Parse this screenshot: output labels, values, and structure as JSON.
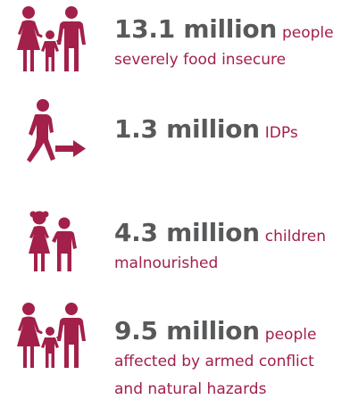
{
  "colors": {
    "accent": "#a2204a",
    "number": "#58595b"
  },
  "stats": [
    {
      "icon": "family-icon",
      "number": "13.1 million",
      "unit": "people",
      "description_lines": [
        "severely food insecure"
      ]
    },
    {
      "icon": "displaced-person-icon",
      "number": "1.3 million",
      "unit": "IDPs",
      "description_lines": []
    },
    {
      "icon": "children-icon",
      "number": "4.3 million",
      "unit": "children",
      "description_lines": [
        "malnourished"
      ]
    },
    {
      "icon": "family-icon",
      "number": "9.5 million",
      "unit": "people",
      "description_lines": [
        "affected by armed conflict",
        "and natural hazards"
      ]
    }
  ]
}
